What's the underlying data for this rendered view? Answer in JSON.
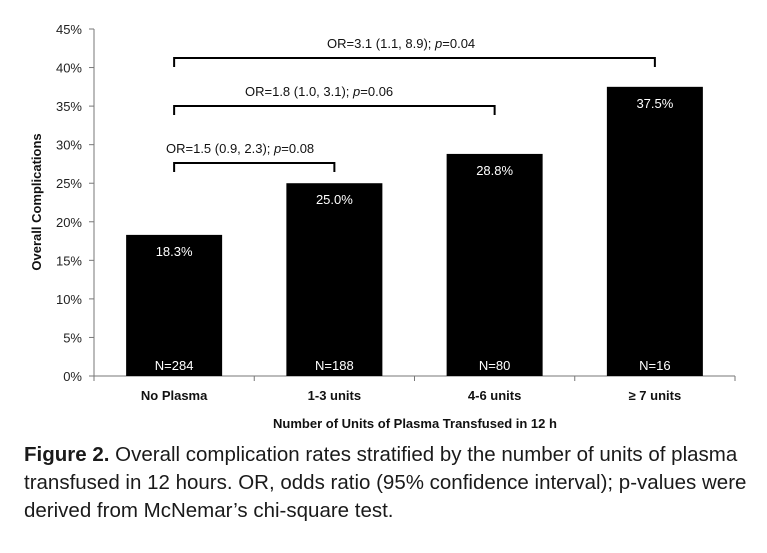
{
  "chart_data": {
    "type": "bar",
    "categories": [
      "No Plasma",
      "1-3 units",
      "4-6 units",
      "≥ 7 units"
    ],
    "values": [
      18.3,
      25.0,
      28.8,
      37.5
    ],
    "value_labels": [
      "18.3%",
      "25.0%",
      "28.8%",
      "37.5%"
    ],
    "n_labels": [
      "N=284",
      "N=188",
      "N=80",
      "N=16"
    ],
    "xlabel": "Number of Units of Plasma Transfused in 12 h",
    "ylabel": "Overall Complications",
    "ylim": [
      0,
      45
    ],
    "yticks": [
      0,
      5,
      10,
      15,
      20,
      25,
      30,
      35,
      40,
      45
    ],
    "ytick_labels": [
      "0%",
      "5%",
      "10%",
      "15%",
      "20%",
      "25%",
      "30%",
      "35%",
      "40%",
      "45%"
    ],
    "grid": false,
    "bar_color": "#000000",
    "comparisons": [
      {
        "from": 0,
        "to": 1,
        "prefix": "OR=1.5 (0.9, 2.3); ",
        "p_symbol": "p",
        "suffix": "=0.08"
      },
      {
        "from": 0,
        "to": 2,
        "prefix": "OR=1.8 (1.0, 3.1); ",
        "p_symbol": "p",
        "suffix": "=0.06"
      },
      {
        "from": 0,
        "to": 3,
        "prefix": "OR=3.1 (1.1, 8.9); ",
        "p_symbol": "p",
        "suffix": "=0.04"
      }
    ]
  },
  "caption": {
    "label": "Figure 2.",
    "text": "Overall complication rates stratified by the number of units of plasma transfused in 12 hours. OR, odds ratio (95% confidence interval); p-values were derived from McNemar’s chi-square test."
  }
}
